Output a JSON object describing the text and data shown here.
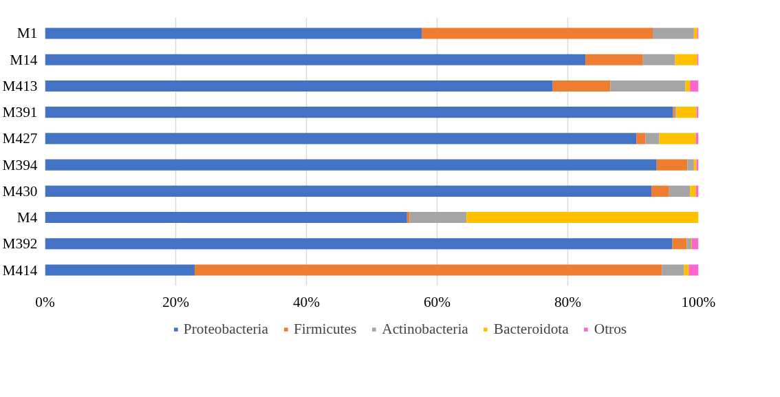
{
  "chart_data": {
    "type": "bar",
    "orientation": "horizontal",
    "stacked": true,
    "categories": [
      "M1",
      "M14",
      "M413",
      "M391",
      "M427",
      "M394",
      "M430",
      "M4",
      "M392",
      "M414"
    ],
    "series": [
      {
        "name": "Proteobacteria",
        "color": "#4472c4",
        "values": [
          57.7,
          82.7,
          77.7,
          96.1,
          90.5,
          93.6,
          92.8,
          55.4,
          96.0,
          22.9
        ]
      },
      {
        "name": "Firmicutes",
        "color": "#ed7d31",
        "values": [
          35.3,
          8.8,
          8.8,
          0.3,
          1.4,
          4.7,
          2.7,
          0.4,
          2.2,
          71.5
        ]
      },
      {
        "name": "Actinobacteria",
        "color": "#a5a5a5",
        "values": [
          6.3,
          4.9,
          11.5,
          0.2,
          2.1,
          1.0,
          3.2,
          8.7,
          0.7,
          3.4
        ]
      },
      {
        "name": "Bacteroidota",
        "color": "#ffc000",
        "values": [
          0.5,
          3.4,
          0.7,
          3.1,
          5.6,
          0.4,
          0.9,
          35.5,
          0.1,
          0.7
        ]
      },
      {
        "name": "Otros",
        "color": "#ff66cc",
        "values": [
          0.2,
          0.2,
          1.3,
          0.3,
          0.4,
          0.3,
          0.4,
          0.0,
          1.0,
          1.5
        ]
      }
    ],
    "xlim": [
      0,
      100
    ],
    "xticks": [
      {
        "value": 0,
        "label": "0%"
      },
      {
        "value": 20,
        "label": "20%"
      },
      {
        "value": 40,
        "label": "40%"
      },
      {
        "value": 60,
        "label": "60%"
      },
      {
        "value": 80,
        "label": "80%"
      },
      {
        "value": 100,
        "label": "100%"
      }
    ],
    "grid": "x",
    "legend": "bottom"
  }
}
